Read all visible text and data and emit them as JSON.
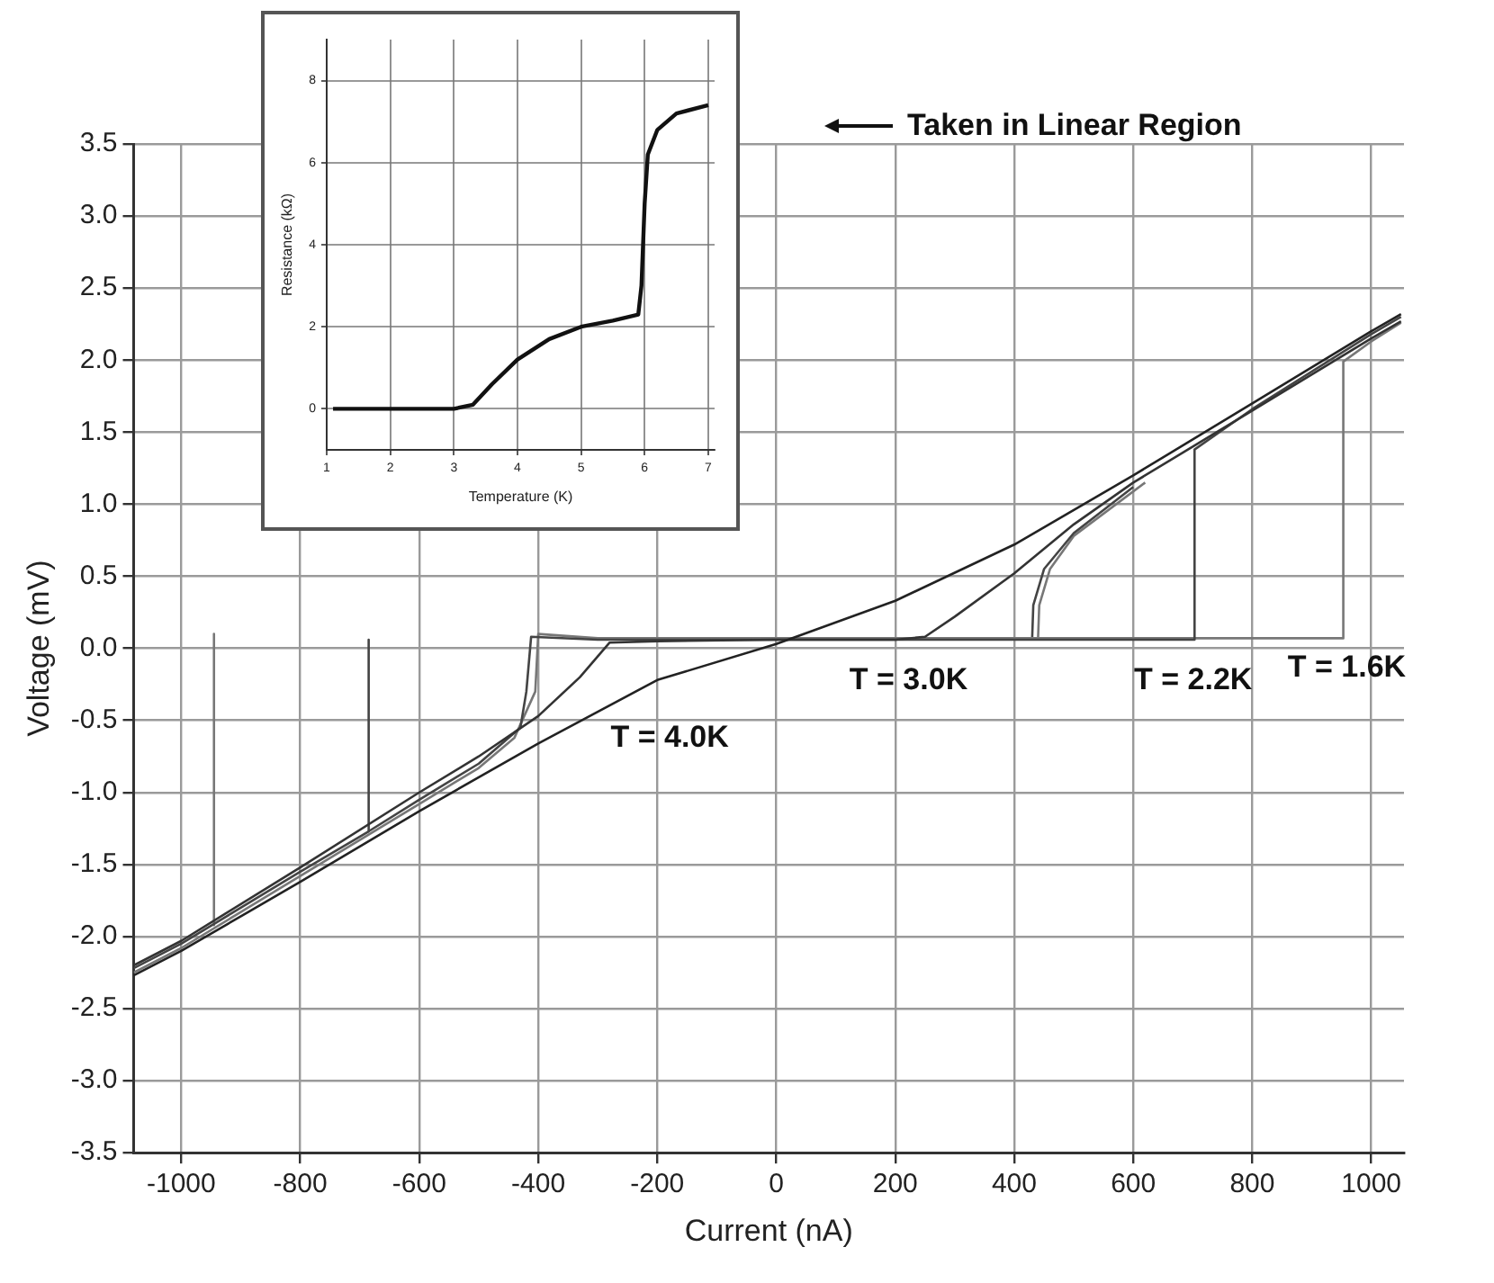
{
  "chart_data": [
    {
      "type": "line",
      "xlabel": "Current (nA)",
      "ylabel": "Voltage (mV)",
      "xlim": [
        -1080,
        1055
      ],
      "ylim": [
        -3.5,
        3.5
      ],
      "xticks": [
        -1000,
        -800,
        -600,
        -400,
        -200,
        0,
        200,
        400,
        600,
        800,
        1000
      ],
      "yticks": [
        -3.5,
        {
          "value": -3,
          "label": "-3.0"
        },
        -2.5,
        {
          "value": -2,
          "label": "-2.0"
        },
        -1.5,
        {
          "value": -1,
          "label": "-1.0"
        },
        -0.5,
        {
          "value": 0,
          "label": "0.0"
        },
        0.5,
        {
          "value": 1,
          "label": "1.0"
        },
        1.5,
        {
          "value": 2,
          "label": "2.0"
        },
        2.5,
        {
          "value": 3,
          "label": "3.0"
        },
        3.5
      ],
      "grid": true,
      "legend": false,
      "marker": "none",
      "series": [
        {
          "name": "T = 4.0K",
          "color": "#222222",
          "x": [
            -1080,
            -1000,
            -800,
            -600,
            -400,
            -200,
            0,
            200,
            400,
            600,
            800,
            1000,
            1050
          ],
          "values": [
            -2.27,
            -2.1,
            -1.62,
            -1.13,
            -0.66,
            -0.22,
            0.03,
            0.33,
            0.72,
            1.2,
            1.7,
            2.2,
            2.32
          ]
        },
        {
          "name": "T = 3.0K",
          "color": "#333333",
          "x": [
            -1080,
            -1000,
            -800,
            -600,
            -500,
            -400,
            -330,
            -280,
            -200,
            0,
            200,
            250,
            300,
            400,
            500,
            600,
            800,
            1000,
            1050
          ],
          "values": [
            -2.2,
            -2.03,
            -1.52,
            -1.0,
            -0.75,
            -0.47,
            -0.2,
            0.04,
            0.05,
            0.06,
            0.06,
            0.08,
            0.22,
            0.52,
            0.86,
            1.15,
            1.65,
            2.15,
            2.27
          ]
        },
        {
          "name": "T = 2.2K",
          "color": "#444444",
          "x": [
            -1080,
            -1000,
            -800,
            -685,
            -600,
            -500,
            -430,
            -420,
            -412,
            -300,
            0,
            300,
            600,
            703,
            703,
            800,
            1000,
            1050
          ],
          "values": [
            -2.22,
            -2.05,
            -1.55,
            -1.27,
            -1.05,
            -0.8,
            -0.55,
            -0.3,
            0.08,
            0.06,
            0.06,
            0.06,
            0.06,
            0.06,
            1.38,
            1.66,
            2.18,
            2.3
          ]
        },
        {
          "name": "T = 1.6K",
          "color": "#777777",
          "x": [
            -1080,
            -1000,
            -800,
            -600,
            -500,
            -440,
            -405,
            -400,
            -300,
            0,
            300,
            600,
            800,
            953,
            953,
            1000,
            1050
          ],
          "values": [
            -2.25,
            -2.08,
            -1.58,
            -1.08,
            -0.83,
            -0.62,
            -0.3,
            0.1,
            0.07,
            0.07,
            0.07,
            0.07,
            0.07,
            0.07,
            1.99,
            2.13,
            2.26
          ]
        },
        {
          "color": "#444444",
          "x": [
            600,
            500,
            450,
            432,
            430
          ],
          "values": [
            1.12,
            0.8,
            0.55,
            0.3,
            0.06
          ]
        },
        {
          "color": "#444444",
          "x": [
            -685,
            -685
          ],
          "values": [
            0.06,
            -1.27
          ]
        },
        {
          "color": "#777777",
          "x": [
            620,
            500,
            460,
            442,
            440
          ],
          "values": [
            1.15,
            0.78,
            0.55,
            0.3,
            0.07
          ]
        },
        {
          "color": "#777777",
          "x": [
            -945,
            -945
          ],
          "values": [
            0.1,
            -1.92
          ]
        }
      ],
      "annotations": [
        "Taken in Linear Region"
      ]
    },
    {
      "type": "line",
      "xlabel": "Temperature (K)",
      "ylabel": "Resistance (kΩ)",
      "xlim": [
        1,
        7.1
      ],
      "ylim": [
        -1,
        9
      ],
      "xticks": [
        1,
        2,
        3,
        4,
        5,
        6,
        7
      ],
      "yticks": [
        0,
        2,
        4,
        6,
        8
      ],
      "grid": true,
      "legend": false,
      "marker": "none",
      "series": [
        {
          "color": "#111111",
          "x": [
            1.1,
            2,
            3,
            3.3,
            3.6,
            4,
            4.5,
            5,
            5.5,
            5.9,
            5.95,
            6.0,
            6.05,
            6.2,
            6.5,
            7.0
          ],
          "values": [
            0,
            0,
            0,
            0.1,
            0.6,
            1.2,
            1.7,
            2.0,
            2.15,
            2.3,
            3,
            5,
            6.2,
            6.8,
            7.2,
            7.4
          ]
        }
      ]
    }
  ]
}
